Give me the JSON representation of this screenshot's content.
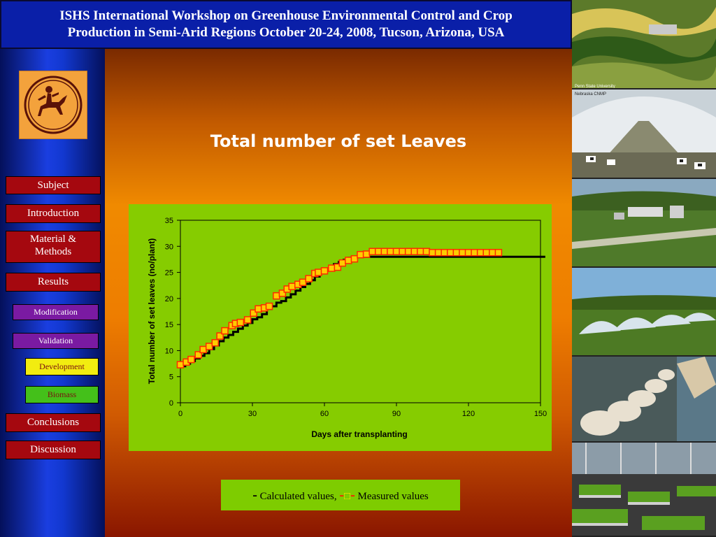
{
  "header": {
    "line1": "ISHS International Workshop on Greenhouse Environmental Control and Crop",
    "line2": "Production in Semi-Arid Regions October 20-24, 2008, Tucson, Arizona, USA"
  },
  "sidebar": {
    "items": [
      {
        "label": "Subject"
      },
      {
        "label": "Introduction"
      },
      {
        "label": "Material &"
      },
      {
        "label": "Methods"
      },
      {
        "label": "Results"
      },
      {
        "label": "Modification"
      },
      {
        "label": "Validation"
      },
      {
        "label": "Development"
      },
      {
        "label": "Biomass"
      },
      {
        "label": "Conclusions"
      },
      {
        "label": "Discussion"
      }
    ]
  },
  "slide": {
    "title": "Total number of set Leaves"
  },
  "legend": {
    "calc_marker": "-",
    "calc_label": "Calculated values,",
    "meas_marker_left": "-",
    "meas_marker_box": "□",
    "meas_marker_right": "-",
    "meas_label": "Measured values"
  },
  "right_photos": [
    {
      "label": "Penn State University"
    },
    {
      "label": "Nebraska CNMP"
    }
  ],
  "chart_data": {
    "type": "line",
    "title": "",
    "xlabel": "Days after transplanting",
    "ylabel": "Total number of set leaves (no/plant)",
    "xlim": [
      0,
      150
    ],
    "ylim": [
      0,
      35
    ],
    "xticks": [
      0,
      30,
      60,
      90,
      120,
      150
    ],
    "yticks": [
      0,
      5,
      10,
      15,
      20,
      25,
      30,
      35
    ],
    "grid": false,
    "series": [
      {
        "name": "Calculated values",
        "color": "#000000",
        "style": "step",
        "x": [
          0,
          2,
          4,
          6,
          8,
          10,
          12,
          14,
          16,
          18,
          20,
          22,
          24,
          26,
          28,
          30,
          32,
          34,
          36,
          38,
          40,
          42,
          44,
          46,
          48,
          50,
          52,
          54,
          56,
          58,
          60,
          62,
          64,
          66,
          68,
          70,
          72,
          74,
          76,
          78,
          80,
          85,
          90,
          95,
          100,
          105,
          110,
          115,
          120,
          125,
          130,
          135,
          140,
          145,
          152
        ],
        "y": [
          7,
          7.5,
          8,
          8.5,
          9,
          9.5,
          10.3,
          11,
          11.8,
          12.5,
          13,
          13.6,
          14.2,
          14.8,
          15.3,
          16,
          16.4,
          17,
          18,
          18.5,
          19.2,
          19.5,
          20.2,
          20.8,
          21.5,
          22.2,
          22.8,
          23.5,
          24.2,
          25,
          25.4,
          26,
          26.6,
          27,
          27.4,
          27.8,
          28,
          28,
          28,
          28,
          28,
          28,
          28,
          28,
          28,
          28,
          28,
          28,
          28,
          28,
          28,
          28,
          28,
          28,
          28
        ]
      },
      {
        "name": "Measured values",
        "color": "#ffcc00",
        "stroke": "#ff2a00",
        "marker": "square",
        "x": [
          0,
          2.5,
          4.5,
          7.5,
          9.5,
          12,
          14.5,
          16.5,
          18.5,
          21.5,
          23,
          25,
          28,
          30.5,
          32.5,
          35,
          37,
          40,
          42.5,
          44.5,
          46.5,
          49,
          51,
          53.5,
          56,
          57.5,
          60,
          63,
          65.5,
          67.5,
          70,
          72.5,
          75,
          77.5,
          80,
          82.5,
          85,
          87.5,
          90,
          92.5,
          95,
          97.5,
          100,
          102.5,
          105,
          107.5,
          110,
          112.5,
          115,
          117.5,
          120,
          122.5,
          125,
          127.5,
          130,
          132.5
        ],
        "y": [
          7.3,
          7.8,
          8.3,
          9.2,
          10.2,
          10.8,
          11.5,
          12.8,
          13.8,
          14.8,
          15.2,
          15.4,
          15.9,
          17.2,
          18,
          18.2,
          18.5,
          20.5,
          21,
          21.8,
          22.3,
          22.7,
          23.1,
          23.8,
          24.8,
          25,
          25.3,
          25.8,
          26,
          26.8,
          27.3,
          27.6,
          28.4,
          28.5,
          29,
          29,
          29,
          29,
          29,
          29,
          29,
          29,
          29,
          29,
          28.8,
          28.8,
          28.8,
          28.8,
          28.8,
          28.8,
          28.8,
          28.8,
          28.8,
          28.8,
          28.8,
          28.8
        ]
      }
    ]
  }
}
